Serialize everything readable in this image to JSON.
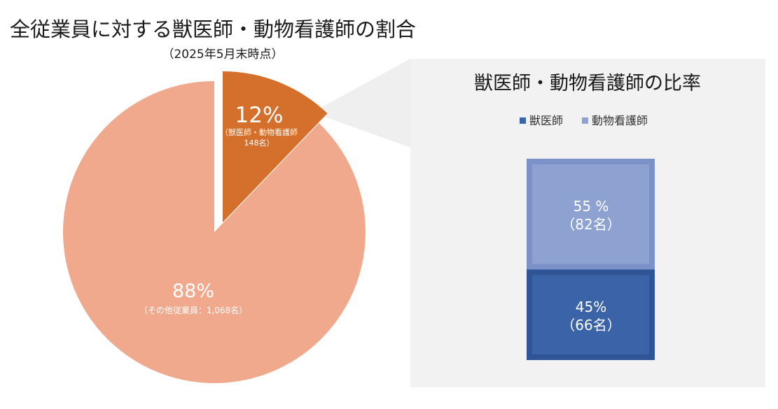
{
  "chart_data": [
    {
      "type": "pie",
      "title": "全従業員に対する獣医師・動物看護師の割合",
      "subtitle": "（2025年5月末時点）",
      "slices": [
        {
          "pct_label": "12%",
          "sub_label_line1": "（獣医師・動物看護師",
          "sub_label_line2": "148名）",
          "value": 148,
          "color": "#d4702b",
          "exploded": true
        },
        {
          "pct_label": "88%",
          "sub_label_line1": "（その他従業員：1,068名）",
          "value": 1068,
          "color": "#f0a98c",
          "exploded": false
        }
      ]
    },
    {
      "type": "bar",
      "stacked": true,
      "title": "獣医師・動物看護師の比率",
      "legend": [
        "獣医師",
        "動物看護師"
      ],
      "legend_position": "top",
      "background": "#f2f2f2",
      "series": [
        {
          "name": "獣医師",
          "value": 66,
          "percent": 45,
          "label_line1": "45%",
          "label_line2": "（66名）",
          "color": "#3b64a8",
          "border": "#2f5597"
        },
        {
          "name": "動物看護師",
          "value": 82,
          "percent": 55,
          "label_line1": "55 %",
          "label_line2": "（82名）",
          "color": "#8ea2d2",
          "border": "#7c91c8"
        }
      ]
    }
  ],
  "connector_color": "#efefef"
}
